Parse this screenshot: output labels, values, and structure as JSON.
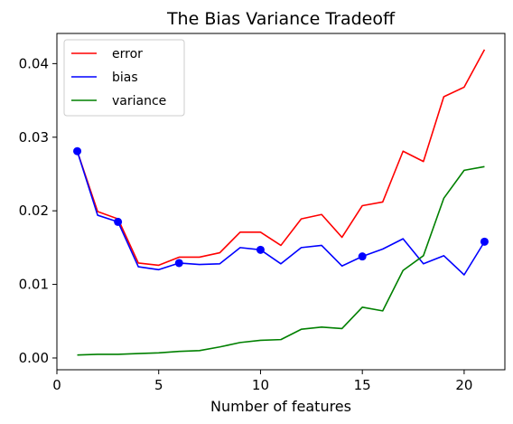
{
  "chart_data": {
    "type": "line",
    "title": "The Bias Variance Tradeoff",
    "xlabel": "Number of features",
    "ylabel": "",
    "xlim": [
      0,
      22
    ],
    "ylim": [
      -0.0016,
      0.0441
    ],
    "xticks": [
      0,
      5,
      10,
      15,
      20
    ],
    "yticks": [
      0.0,
      0.01,
      0.02,
      0.03,
      0.04
    ],
    "ytick_labels": [
      "0.00",
      "0.01",
      "0.02",
      "0.03",
      "0.04"
    ],
    "grid": false,
    "legend_position": "top-left",
    "x": [
      1,
      2,
      3,
      4,
      5,
      6,
      7,
      8,
      9,
      10,
      11,
      12,
      13,
      14,
      15,
      16,
      17,
      18,
      19,
      20,
      21
    ],
    "series": [
      {
        "name": "error",
        "color": "#ff0000",
        "values": [
          0.0281,
          0.0199,
          0.0189,
          0.0129,
          0.0126,
          0.0137,
          0.0137,
          0.0143,
          0.0171,
          0.0171,
          0.0153,
          0.0189,
          0.0195,
          0.0164,
          0.0207,
          0.0212,
          0.0281,
          0.0267,
          0.0355,
          0.0368,
          0.0419
        ]
      },
      {
        "name": "bias",
        "color": "#0000ff",
        "values": [
          0.0281,
          0.0194,
          0.0185,
          0.0124,
          0.012,
          0.0129,
          0.0127,
          0.0128,
          0.015,
          0.0147,
          0.0128,
          0.015,
          0.0153,
          0.0125,
          0.0138,
          0.0148,
          0.0162,
          0.0128,
          0.0139,
          0.0113,
          0.0158
        ],
        "markers_at_x": [
          1,
          3,
          6,
          10,
          15,
          21
        ]
      },
      {
        "name": "variance",
        "color": "#008000",
        "values": [
          0.0004,
          0.0005,
          0.0005,
          0.0006,
          0.0007,
          0.0009,
          0.001,
          0.0015,
          0.0021,
          0.0024,
          0.0025,
          0.0039,
          0.0042,
          0.004,
          0.0069,
          0.0064,
          0.0119,
          0.0139,
          0.0217,
          0.0255,
          0.026
        ]
      }
    ]
  }
}
